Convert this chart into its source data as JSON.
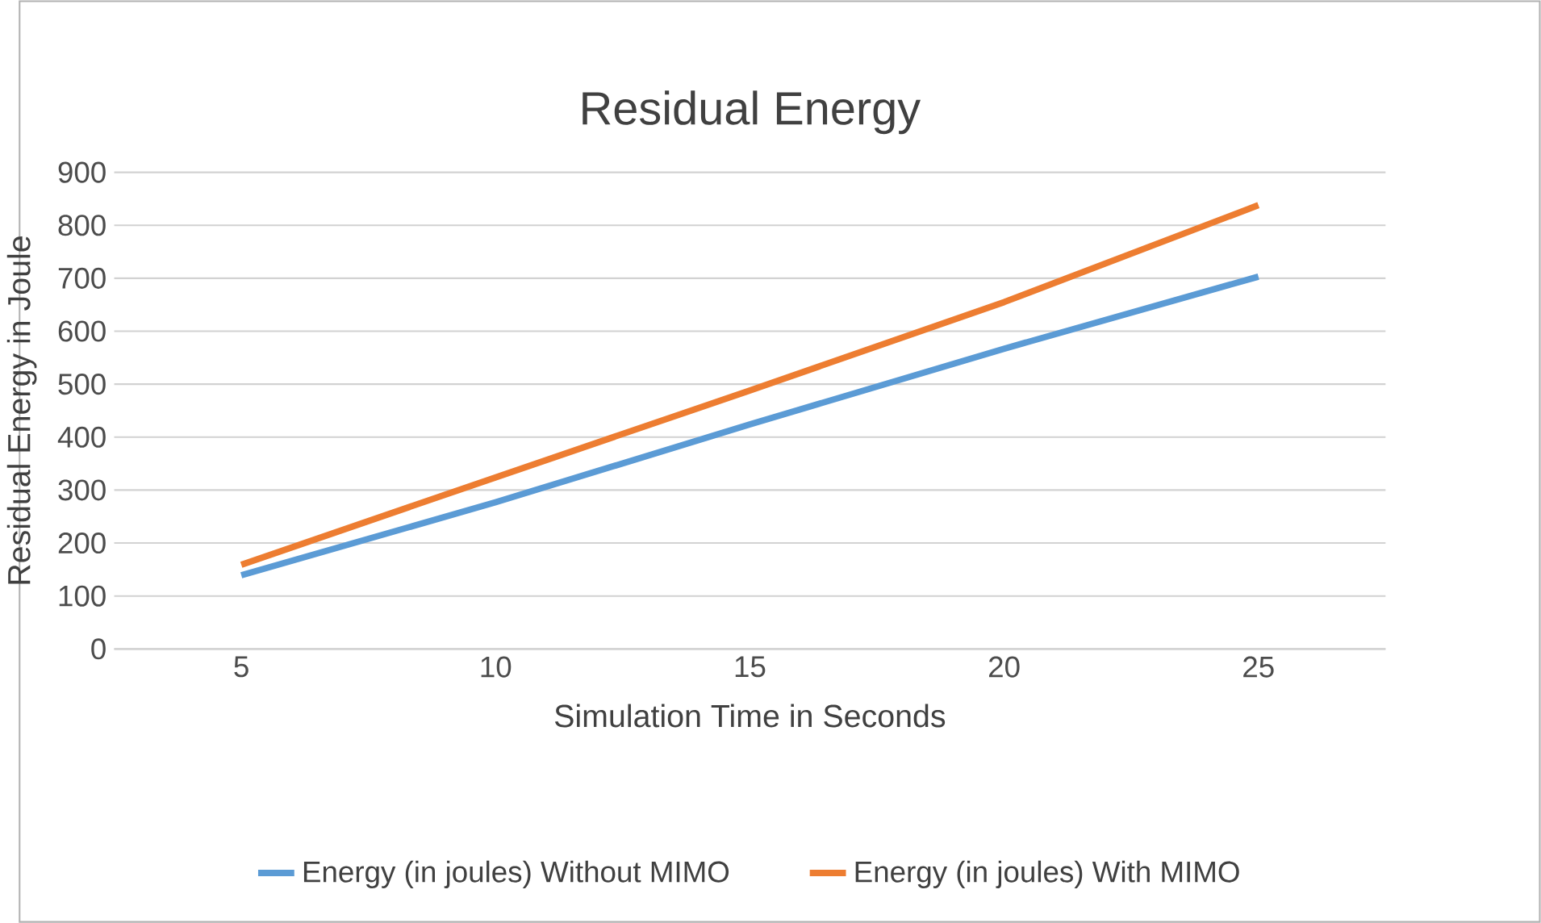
{
  "chart_data": {
    "type": "line",
    "title": "Residual Energy",
    "xlabel": "Simulation Time in Seconds",
    "ylabel": "Residual Energy in Joule",
    "categories": [
      "5",
      "10",
      "15",
      "20",
      "25"
    ],
    "series": [
      {
        "name": "Energy (in joules) Without MIMO",
        "color": "#5b9bd5",
        "values": [
          139,
          277,
          424,
          567,
          703
        ]
      },
      {
        "name": "Energy (in joules) With MIMO",
        "color": "#ed7d31",
        "values": [
          159,
          324,
          488,
          655,
          838
        ]
      }
    ],
    "ylim": [
      0,
      900
    ],
    "yticks": [
      0,
      100,
      200,
      300,
      400,
      500,
      600,
      700,
      800,
      900
    ],
    "grid": "y",
    "legend": "bottom",
    "marker": "none",
    "line_style": "solid"
  }
}
